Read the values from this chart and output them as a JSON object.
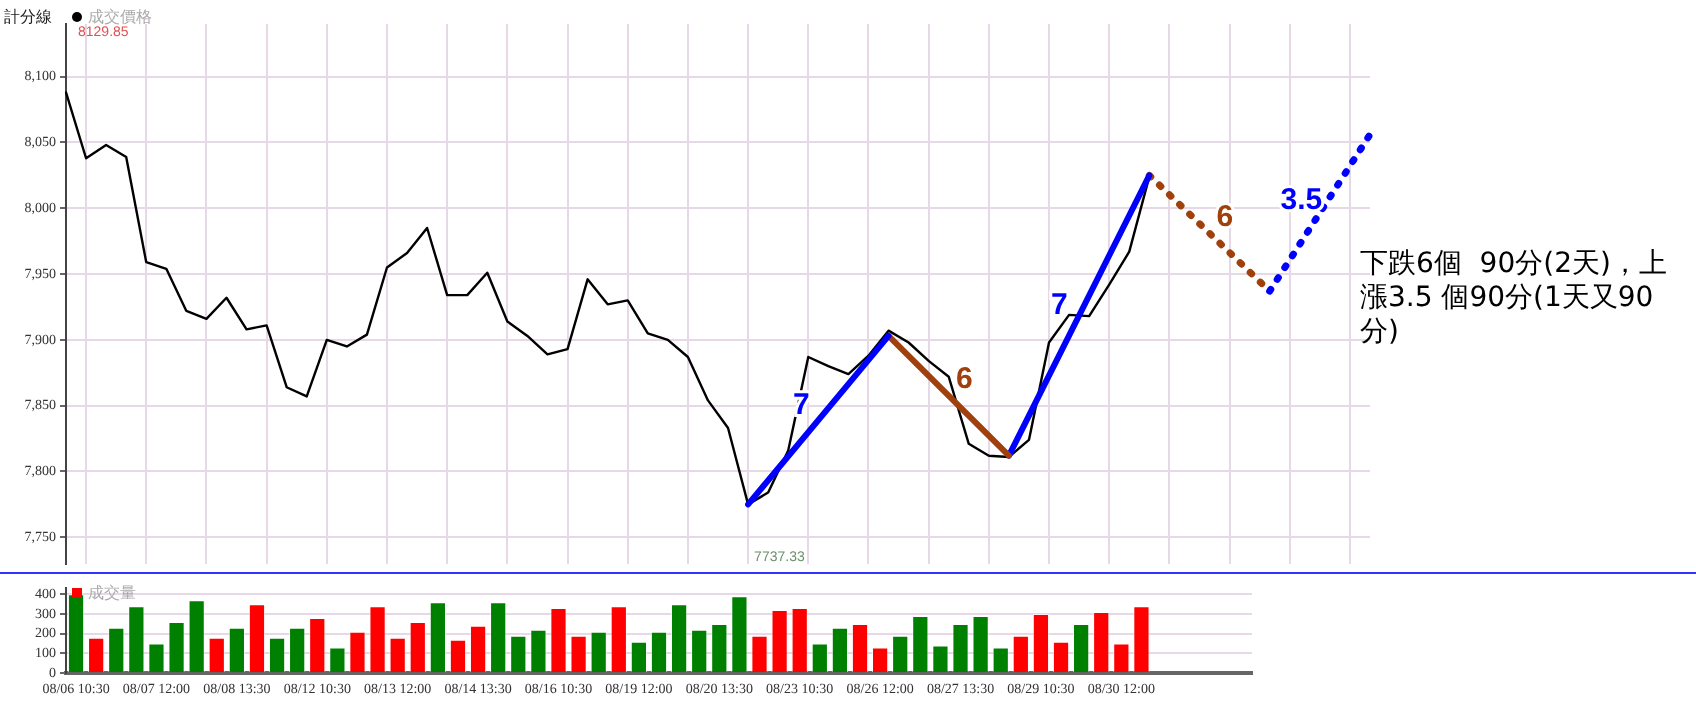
{
  "chart_data": [
    {
      "type": "line",
      "title": "計分線",
      "legend": "top left",
      "grid": true,
      "marker": "none",
      "tick_labels": "y",
      "categories": [
        null,
        null,
        null,
        null,
        null,
        null,
        null,
        null,
        null,
        null,
        null,
        null,
        null,
        null,
        null,
        null,
        null,
        null,
        null,
        null,
        null,
        null,
        null,
        null,
        null,
        null,
        null,
        null,
        null,
        null,
        null,
        null,
        null,
        null,
        null,
        null,
        null,
        null,
        null,
        null,
        null,
        null,
        null,
        null,
        null,
        null,
        null,
        null,
        null,
        null,
        null,
        null,
        null,
        null,
        null,
        null,
        null,
        null,
        null,
        null,
        null,
        null,
        null,
        null,
        null,
        null
      ],
      "ylim": [
        7730,
        8140
      ],
      "yticks": [
        {
          "value": 7750,
          "label": "7,750"
        },
        {
          "value": 7800,
          "label": "7,800"
        },
        {
          "value": 7850,
          "label": "7,850"
        },
        {
          "value": 7900,
          "label": "7,900"
        },
        {
          "value": 7950,
          "label": "7,950"
        },
        {
          "value": 8000,
          "label": "8,000"
        },
        {
          "value": 8050,
          "label": "8,050"
        },
        {
          "value": 8100,
          "label": "8,100"
        }
      ],
      "series": [
        {
          "name": "成交價格",
          "color": "#000000",
          "line_style": "solid",
          "values": [
            8088,
            8038,
            8048,
            8039,
            7959,
            7954,
            7922,
            7916,
            7932,
            7908,
            7911,
            7864,
            7857,
            7900,
            7895,
            7904,
            7955,
            7966,
            7985,
            7934,
            7934,
            7951,
            7914,
            7903,
            7889,
            7893,
            7946,
            7927,
            7930,
            7905,
            7900,
            7887,
            7854,
            7833,
            7775,
            7784,
            7816,
            7887,
            7880,
            7874,
            7888,
            7907,
            7898,
            7884,
            7872,
            7821,
            7812,
            7811,
            7824,
            7898,
            7919,
            7918,
            7942,
            7967,
            8024,
            null,
            null,
            null,
            null,
            null,
            null,
            null,
            null,
            null,
            null,
            null
          ]
        },
        {
          "name": "7",
          "color": "#0000ff",
          "line_style": "solid",
          "values": [
            null,
            null,
            null,
            null,
            null,
            null,
            null,
            null,
            null,
            null,
            null,
            null,
            null,
            null,
            null,
            null,
            null,
            null,
            null,
            null,
            null,
            null,
            null,
            null,
            null,
            null,
            null,
            null,
            null,
            null,
            null,
            null,
            null,
            null,
            7775,
            null,
            null,
            null,
            null,
            null,
            null,
            7903,
            null,
            null,
            null,
            null,
            null,
            null,
            null,
            null,
            null,
            null,
            null,
            null,
            null,
            null,
            null,
            null,
            null,
            null,
            null,
            null,
            null,
            null,
            null,
            null
          ]
        },
        {
          "name": "6",
          "color": "#a0400c",
          "line_style": "solid",
          "values": [
            null,
            null,
            null,
            null,
            null,
            null,
            null,
            null,
            null,
            null,
            null,
            null,
            null,
            null,
            null,
            null,
            null,
            null,
            null,
            null,
            null,
            null,
            null,
            null,
            null,
            null,
            null,
            null,
            null,
            null,
            null,
            null,
            null,
            null,
            null,
            null,
            null,
            null,
            null,
            null,
            null,
            7903,
            null,
            null,
            null,
            null,
            null,
            7812,
            null,
            null,
            null,
            null,
            null,
            null,
            null,
            null,
            null,
            null,
            null,
            null,
            null,
            null,
            null,
            null,
            null,
            null
          ]
        },
        {
          "name": "7",
          "color": "#0000ff",
          "line_style": "solid",
          "values": [
            null,
            null,
            null,
            null,
            null,
            null,
            null,
            null,
            null,
            null,
            null,
            null,
            null,
            null,
            null,
            null,
            null,
            null,
            null,
            null,
            null,
            null,
            null,
            null,
            null,
            null,
            null,
            null,
            null,
            null,
            null,
            null,
            null,
            null,
            null,
            null,
            null,
            null,
            null,
            null,
            null,
            null,
            null,
            null,
            null,
            null,
            null,
            7812,
            null,
            null,
            null,
            null,
            null,
            null,
            8025,
            null,
            null,
            null,
            null,
            null,
            null,
            null,
            null,
            null,
            null,
            null
          ]
        },
        {
          "name": "6",
          "color": "#a0400c",
          "line_style": "dotted",
          "values": [
            null,
            null,
            null,
            null,
            null,
            null,
            null,
            null,
            null,
            null,
            null,
            null,
            null,
            null,
            null,
            null,
            null,
            null,
            null,
            null,
            null,
            null,
            null,
            null,
            null,
            null,
            null,
            null,
            null,
            null,
            null,
            null,
            null,
            null,
            null,
            null,
            null,
            null,
            null,
            null,
            null,
            null,
            null,
            null,
            null,
            null,
            null,
            null,
            null,
            null,
            null,
            null,
            null,
            null,
            8025,
            null,
            null,
            null,
            null,
            null,
            7937,
            null,
            null,
            null,
            null,
            null
          ]
        },
        {
          "name": "3.5",
          "color": "#0000ff",
          "line_style": "dotted",
          "values": [
            null,
            null,
            null,
            null,
            null,
            null,
            null,
            null,
            null,
            null,
            null,
            null,
            null,
            null,
            null,
            null,
            null,
            null,
            null,
            null,
            null,
            null,
            null,
            null,
            null,
            null,
            null,
            null,
            null,
            null,
            null,
            null,
            null,
            null,
            null,
            null,
            null,
            null,
            null,
            null,
            null,
            null,
            null,
            null,
            null,
            null,
            null,
            null,
            null,
            null,
            null,
            null,
            null,
            null,
            null,
            null,
            null,
            null,
            null,
            null,
            7937,
            null,
            null,
            null,
            null,
            8056
          ]
        }
      ],
      "annotations": [
        "8129.85",
        "7737.33",
        "下跌6個  90分(2天)，上漲3.5 個90分(1天又90分)"
      ]
    },
    {
      "type": "bar",
      "legend": "top left",
      "grid": "y",
      "categories": [
        "08/06 10:30",
        null,
        null,
        null,
        "08/07 12:00",
        null,
        null,
        null,
        "08/08 13:30",
        null,
        null,
        null,
        "08/12 10:30",
        null,
        null,
        null,
        "08/13 12:00",
        null,
        null,
        null,
        "08/14 13:30",
        null,
        null,
        null,
        "08/16 10:30",
        null,
        null,
        null,
        "08/19 12:00",
        null,
        null,
        null,
        "08/20 13:30",
        null,
        null,
        null,
        "08/23 10:30",
        null,
        null,
        null,
        "08/26 12:00",
        null,
        null,
        null,
        "08/27 13:30",
        null,
        null,
        null,
        "08/29 10:30",
        null,
        null,
        null,
        "08/30 12:00",
        null,
        null,
        null,
        null,
        null,
        null
      ],
      "ylim": [
        0,
        430
      ],
      "yticks": [
        0,
        100,
        200,
        300,
        400
      ],
      "series": [
        {
          "name": "成交量",
          "color": "#ff0000",
          "colors": [
            "#008000",
            "#ff0000",
            "#008000",
            "#008000",
            "#008000",
            "#008000",
            "#008000",
            "#ff0000",
            "#008000",
            "#ff0000",
            "#008000",
            "#008000",
            "#ff0000",
            "#008000",
            "#ff0000",
            "#ff0000",
            "#ff0000",
            "#ff0000",
            "#008000",
            "#ff0000",
            "#ff0000",
            "#008000",
            "#008000",
            "#008000",
            "#ff0000",
            "#ff0000",
            "#008000",
            "#ff0000",
            "#008000",
            "#008000",
            "#008000",
            "#008000",
            "#008000",
            "#008000",
            "#ff0000",
            "#ff0000",
            "#ff0000",
            "#008000",
            "#008000",
            "#ff0000",
            "#ff0000",
            "#008000",
            "#008000",
            "#008000",
            "#008000",
            "#008000",
            "#008000",
            "#ff0000",
            "#ff0000",
            "#ff0000",
            "#008000",
            "#ff0000",
            "#ff0000",
            "#ff0000",
            null,
            null,
            null,
            null,
            null
          ],
          "values": [
            400,
            180,
            230,
            340,
            150,
            260,
            370,
            180,
            230,
            350,
            180,
            230,
            280,
            130,
            210,
            340,
            180,
            260,
            360,
            170,
            240,
            360,
            190,
            220,
            330,
            190,
            210,
            340,
            160,
            210,
            350,
            220,
            250,
            390,
            190,
            320,
            330,
            150,
            230,
            250,
            130,
            190,
            290,
            140,
            250,
            290,
            130,
            190,
            300,
            160,
            250,
            310,
            150,
            340,
            null,
            null,
            null,
            null,
            null
          ]
        }
      ]
    }
  ]
}
